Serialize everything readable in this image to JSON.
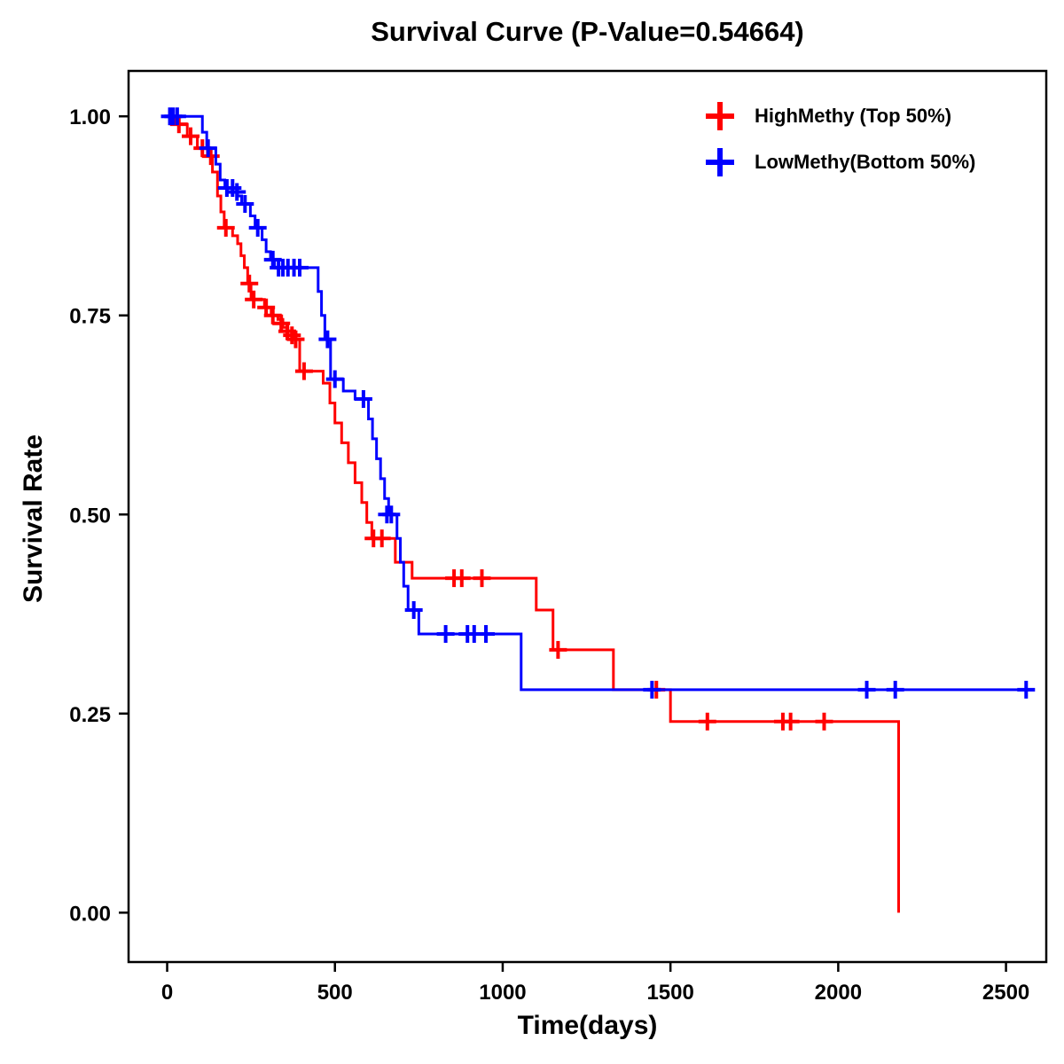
{
  "chart_data": {
    "type": "line",
    "subtype": "kaplan_meier_step_survival",
    "title": "Survival Curve (P-Value=0.54664)",
    "p_value": "0.54664",
    "xlabel": "Time(days)",
    "ylabel": "Survival Rate",
    "xlim": [
      -115,
      2620
    ],
    "ylim": [
      -0.062,
      1.057
    ],
    "xticks": [
      0,
      500,
      1000,
      1500,
      2000,
      2500
    ],
    "xtick_labels": [
      "0",
      "500",
      "1000",
      "1500",
      "2000",
      "2500"
    ],
    "yticks": [
      0,
      0.25,
      0.5,
      0.75,
      1
    ],
    "ytick_labels": [
      "0.00",
      "0.25",
      "0.50",
      "0.75",
      "1.00"
    ],
    "grid": false,
    "legend_position": "top-right",
    "series": [
      {
        "name": "HighMethy (Top 50%)",
        "color": "#ff0000",
        "marker": "plus",
        "steps": [
          [
            0,
            1.0
          ],
          [
            25,
            0.99
          ],
          [
            60,
            0.975
          ],
          [
            90,
            0.96
          ],
          [
            120,
            0.95
          ],
          [
            135,
            0.93
          ],
          [
            150,
            0.9
          ],
          [
            160,
            0.88
          ],
          [
            170,
            0.86
          ],
          [
            195,
            0.85
          ],
          [
            210,
            0.84
          ],
          [
            220,
            0.825
          ],
          [
            230,
            0.81
          ],
          [
            240,
            0.79
          ],
          [
            250,
            0.77
          ],
          [
            290,
            0.76
          ],
          [
            310,
            0.75
          ],
          [
            330,
            0.745
          ],
          [
            345,
            0.735
          ],
          [
            360,
            0.73
          ],
          [
            375,
            0.72
          ],
          [
            395,
            0.68
          ],
          [
            465,
            0.665
          ],
          [
            485,
            0.64
          ],
          [
            500,
            0.615
          ],
          [
            520,
            0.59
          ],
          [
            540,
            0.565
          ],
          [
            560,
            0.54
          ],
          [
            580,
            0.515
          ],
          [
            595,
            0.49
          ],
          [
            610,
            0.47
          ],
          [
            680,
            0.44
          ],
          [
            730,
            0.42
          ],
          [
            1100,
            0.38
          ],
          [
            1150,
            0.33
          ],
          [
            1330,
            0.28
          ],
          [
            1500,
            0.24
          ],
          [
            2180,
            0.0
          ]
        ],
        "censors": [
          [
            35,
            0.99
          ],
          [
            70,
            0.975
          ],
          [
            105,
            0.96
          ],
          [
            130,
            0.95
          ],
          [
            175,
            0.86
          ],
          [
            245,
            0.79
          ],
          [
            258,
            0.77
          ],
          [
            295,
            0.76
          ],
          [
            315,
            0.75
          ],
          [
            340,
            0.74
          ],
          [
            358,
            0.73
          ],
          [
            372,
            0.725
          ],
          [
            383,
            0.72
          ],
          [
            408,
            0.68
          ],
          [
            615,
            0.47
          ],
          [
            640,
            0.47
          ],
          [
            855,
            0.42
          ],
          [
            878,
            0.42
          ],
          [
            938,
            0.42
          ],
          [
            1165,
            0.33
          ],
          [
            1458,
            0.28
          ],
          [
            1610,
            0.24
          ],
          [
            1835,
            0.24
          ],
          [
            1858,
            0.24
          ],
          [
            1958,
            0.24
          ]
        ]
      },
      {
        "name": "LowMethy(Bottom 50%)",
        "color": "#0000ff",
        "marker": "plus",
        "steps": [
          [
            0,
            1.0
          ],
          [
            105,
            0.98
          ],
          [
            118,
            0.96
          ],
          [
            145,
            0.94
          ],
          [
            158,
            0.92
          ],
          [
            172,
            0.91
          ],
          [
            210,
            0.9
          ],
          [
            222,
            0.89
          ],
          [
            248,
            0.875
          ],
          [
            262,
            0.86
          ],
          [
            283,
            0.845
          ],
          [
            295,
            0.83
          ],
          [
            308,
            0.82
          ],
          [
            320,
            0.81
          ],
          [
            450,
            0.78
          ],
          [
            460,
            0.75
          ],
          [
            470,
            0.72
          ],
          [
            487,
            0.67
          ],
          [
            525,
            0.655
          ],
          [
            560,
            0.645
          ],
          [
            600,
            0.62
          ],
          [
            612,
            0.595
          ],
          [
            624,
            0.57
          ],
          [
            636,
            0.545
          ],
          [
            648,
            0.52
          ],
          [
            660,
            0.5
          ],
          [
            685,
            0.47
          ],
          [
            695,
            0.44
          ],
          [
            705,
            0.41
          ],
          [
            718,
            0.38
          ],
          [
            750,
            0.35
          ],
          [
            1055,
            0.28
          ],
          [
            2570,
            0.28
          ]
        ],
        "censors": [
          [
            8,
            1.0
          ],
          [
            18,
            1.0
          ],
          [
            30,
            1.0
          ],
          [
            122,
            0.96
          ],
          [
            178,
            0.91
          ],
          [
            195,
            0.91
          ],
          [
            208,
            0.905
          ],
          [
            232,
            0.89
          ],
          [
            270,
            0.86
          ],
          [
            315,
            0.82
          ],
          [
            332,
            0.81
          ],
          [
            345,
            0.81
          ],
          [
            360,
            0.81
          ],
          [
            378,
            0.81
          ],
          [
            395,
            0.81
          ],
          [
            478,
            0.72
          ],
          [
            500,
            0.67
          ],
          [
            585,
            0.645
          ],
          [
            655,
            0.5
          ],
          [
            668,
            0.5
          ],
          [
            735,
            0.38
          ],
          [
            830,
            0.35
          ],
          [
            895,
            0.35
          ],
          [
            915,
            0.35
          ],
          [
            950,
            0.35
          ],
          [
            1445,
            0.28
          ],
          [
            2085,
            0.28
          ],
          [
            2170,
            0.28
          ],
          [
            2560,
            0.28
          ]
        ]
      }
    ]
  }
}
